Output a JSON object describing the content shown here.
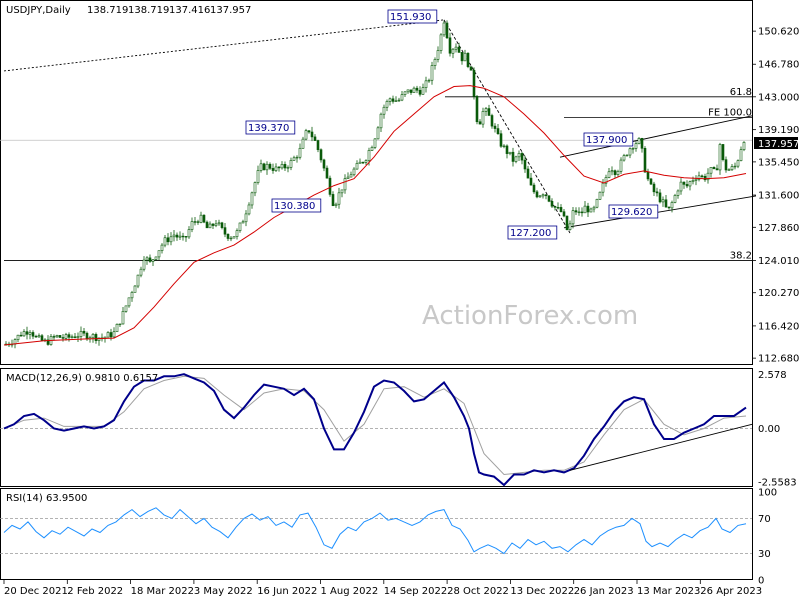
{
  "chart_data": [
    {
      "type": "candlestick",
      "title": "USDJPY,Daily",
      "ohlc_readout": {
        "open": "138.719",
        "high": "138.719",
        "low": "137.416",
        "close": "137.957"
      },
      "current_price": "137.957",
      "watermark": "ActionForex.com",
      "y_ticks": [
        "150.620",
        "146.780",
        "143.000",
        "139.190",
        "135.450",
        "131.600",
        "127.860",
        "124.010",
        "120.270",
        "116.420",
        "112.680"
      ],
      "ylim": [
        112.0,
        154.0
      ],
      "x_ticks": [
        "20 Dec 2021",
        "2 Feb 2022",
        "18 Mar 2022",
        "3 May 2022",
        "16 Jun 2022",
        "1 Aug 2022",
        "14 Sep 2022",
        "28 Oct 2022",
        "13 Dec 2022",
        "26 Jan 2023",
        "13 Mar 2023",
        "26 Apr 2023"
      ],
      "price_path": [
        [
          0,
          114.2
        ],
        [
          10,
          114.8
        ],
        [
          18,
          115.6
        ],
        [
          26,
          116.0
        ],
        [
          32,
          115.0
        ],
        [
          42,
          114.5
        ],
        [
          52,
          115.2
        ],
        [
          62,
          115.0
        ],
        [
          74,
          115.4
        ],
        [
          86,
          115.3
        ],
        [
          98,
          115.0
        ],
        [
          110,
          115.6
        ],
        [
          118,
          117.5
        ],
        [
          126,
          120.0
        ],
        [
          134,
          122.2
        ],
        [
          140,
          124.5
        ],
        [
          146,
          123.7
        ],
        [
          152,
          124.8
        ],
        [
          160,
          126.2
        ],
        [
          170,
          127.0
        ],
        [
          180,
          126.3
        ],
        [
          188,
          128.3
        ],
        [
          196,
          129.0
        ],
        [
          204,
          127.6
        ],
        [
          212,
          128.5
        ],
        [
          220,
          127.2
        ],
        [
          226,
          126.8
        ],
        [
          232,
          127.0
        ],
        [
          240,
          129.0
        ],
        [
          248,
          132.0
        ],
        [
          256,
          134.8
        ],
        [
          264,
          135.0
        ],
        [
          272,
          134.6
        ],
        [
          280,
          134.8
        ],
        [
          288,
          135.5
        ],
        [
          296,
          136.8
        ],
        [
          304,
          139.37
        ],
        [
          312,
          137.6
        ],
        [
          318,
          135.5
        ],
        [
          324,
          133.0
        ],
        [
          330,
          130.38
        ],
        [
          338,
          132.5
        ],
        [
          346,
          134.0
        ],
        [
          354,
          135.0
        ],
        [
          362,
          136.0
        ],
        [
          370,
          138.0
        ],
        [
          378,
          141.5
        ],
        [
          386,
          142.8
        ],
        [
          394,
          142.5
        ],
        [
          402,
          143.5
        ],
        [
          410,
          143.8
        ],
        [
          418,
          143.7
        ],
        [
          424,
          144.8
        ],
        [
          430,
          147.0
        ],
        [
          436,
          149.5
        ],
        [
          440,
          151.93
        ],
        [
          446,
          148.5
        ],
        [
          452,
          149.0
        ],
        [
          458,
          147.5
        ],
        [
          462,
          147.8
        ],
        [
          468,
          145.2
        ],
        [
          474,
          139.5
        ],
        [
          480,
          141.6
        ],
        [
          486,
          140.5
        ],
        [
          492,
          138.8
        ],
        [
          498,
          137.3
        ],
        [
          504,
          136.5
        ],
        [
          510,
          135.5
        ],
        [
          516,
          136.4
        ],
        [
          522,
          134.0
        ],
        [
          528,
          132.2
        ],
        [
          534,
          131.6
        ],
        [
          540,
          132.0
        ],
        [
          546,
          131.0
        ],
        [
          552,
          130.0
        ],
        [
          558,
          129.6
        ],
        [
          564,
          127.2
        ],
        [
          570,
          130.0
        ],
        [
          576,
          129.3
        ],
        [
          582,
          130.3
        ],
        [
          588,
          129.4
        ],
        [
          594,
          131.0
        ],
        [
          600,
          133.0
        ],
        [
          606,
          135.0
        ],
        [
          612,
          134.3
        ],
        [
          618,
          135.5
        ],
        [
          624,
          136.8
        ],
        [
          630,
          137.6
        ],
        [
          636,
          137.9
        ],
        [
          642,
          134.0
        ],
        [
          648,
          132.2
        ],
        [
          654,
          131.5
        ],
        [
          660,
          130.5
        ],
        [
          664,
          129.62
        ],
        [
          670,
          131.2
        ],
        [
          676,
          133.0
        ],
        [
          682,
          132.5
        ],
        [
          688,
          133.4
        ],
        [
          694,
          134.0
        ],
        [
          700,
          133.5
        ],
        [
          706,
          134.5
        ],
        [
          712,
          134.1
        ],
        [
          716,
          137.5
        ],
        [
          720,
          134.8
        ],
        [
          726,
          134.5
        ],
        [
          732,
          135.0
        ],
        [
          738,
          137.5
        ],
        [
          742,
          138.8
        ]
      ],
      "sma_path": [
        [
          0,
          114.2
        ],
        [
          40,
          114.7
        ],
        [
          80,
          114.9
        ],
        [
          110,
          115.0
        ],
        [
          130,
          116.2
        ],
        [
          150,
          118.6
        ],
        [
          170,
          121.3
        ],
        [
          190,
          123.8
        ],
        [
          210,
          124.9
        ],
        [
          230,
          125.8
        ],
        [
          250,
          127.3
        ],
        [
          270,
          129.0
        ],
        [
          290,
          130.3
        ],
        [
          310,
          131.6
        ],
        [
          330,
          132.7
        ],
        [
          350,
          133.5
        ],
        [
          370,
          136.0
        ],
        [
          390,
          139.0
        ],
        [
          410,
          141.0
        ],
        [
          430,
          143.0
        ],
        [
          450,
          144.2
        ],
        [
          466,
          144.3
        ],
        [
          480,
          144.0
        ],
        [
          500,
          143.0
        ],
        [
          520,
          141.0
        ],
        [
          540,
          138.8
        ],
        [
          560,
          136.2
        ],
        [
          580,
          133.8
        ],
        [
          600,
          133.0
        ],
        [
          620,
          134.0
        ],
        [
          640,
          134.4
        ],
        [
          660,
          133.9
        ],
        [
          680,
          133.6
        ],
        [
          700,
          133.5
        ],
        [
          720,
          133.6
        ],
        [
          742,
          134.1
        ]
      ],
      "sma_color": "#d40000",
      "candle_color": "#0a5a0a",
      "levels": [
        {
          "label": "61.8",
          "value": 143.0,
          "xStart": 441
        },
        {
          "label": "FE 100.0",
          "value": 140.6,
          "xStart": 560
        },
        {
          "label": "38.2",
          "value": 124.0,
          "xStart": 0
        }
      ],
      "annotations": [
        "151.930",
        "139.370",
        "130.380",
        "127.200",
        "137.900",
        "129.620"
      ]
    },
    {
      "type": "line",
      "title": "MACD(12,26,9) 0.9810 0.6157",
      "y_ticks": [
        "2.578",
        "0.00",
        "-2.5583"
      ],
      "ylim": [
        -2.75,
        2.8
      ],
      "macd_color": "#00008b",
      "signal_color": "#a0a0a0",
      "macd_path": [
        [
          0,
          0.0
        ],
        [
          10,
          0.2
        ],
        [
          20,
          0.6
        ],
        [
          30,
          0.7
        ],
        [
          40,
          0.4
        ],
        [
          50,
          0.0
        ],
        [
          60,
          -0.1
        ],
        [
          70,
          0.0
        ],
        [
          80,
          0.1
        ],
        [
          90,
          0.0
        ],
        [
          100,
          0.1
        ],
        [
          110,
          0.4
        ],
        [
          120,
          1.3
        ],
        [
          130,
          2.0
        ],
        [
          140,
          2.3
        ],
        [
          150,
          2.3
        ],
        [
          160,
          2.5
        ],
        [
          170,
          2.5
        ],
        [
          180,
          2.6
        ],
        [
          190,
          2.4
        ],
        [
          200,
          2.2
        ],
        [
          210,
          1.8
        ],
        [
          220,
          0.9
        ],
        [
          230,
          0.5
        ],
        [
          240,
          1.0
        ],
        [
          250,
          1.6
        ],
        [
          260,
          2.1
        ],
        [
          270,
          2.0
        ],
        [
          280,
          1.9
        ],
        [
          290,
          1.6
        ],
        [
          300,
          1.9
        ],
        [
          310,
          1.4
        ],
        [
          320,
          0.0
        ],
        [
          330,
          -1.0
        ],
        [
          340,
          -1.0
        ],
        [
          350,
          -0.2
        ],
        [
          360,
          0.8
        ],
        [
          370,
          2.0
        ],
        [
          380,
          2.3
        ],
        [
          390,
          2.2
        ],
        [
          400,
          1.8
        ],
        [
          410,
          1.3
        ],
        [
          420,
          1.4
        ],
        [
          430,
          1.8
        ],
        [
          440,
          2.2
        ],
        [
          450,
          1.5
        ],
        [
          460,
          0.6
        ],
        [
          465,
          0.0
        ],
        [
          470,
          -1.2
        ],
        [
          475,
          -2.1
        ],
        [
          480,
          -2.2
        ],
        [
          490,
          -2.3
        ],
        [
          500,
          -2.7
        ],
        [
          510,
          -2.2
        ],
        [
          520,
          -2.2
        ],
        [
          530,
          -2.0
        ],
        [
          540,
          -2.1
        ],
        [
          550,
          -2.0
        ],
        [
          560,
          -2.1
        ],
        [
          570,
          -1.9
        ],
        [
          580,
          -1.3
        ],
        [
          590,
          -0.5
        ],
        [
          600,
          0.1
        ],
        [
          610,
          0.8
        ],
        [
          620,
          1.3
        ],
        [
          630,
          1.5
        ],
        [
          640,
          1.4
        ],
        [
          650,
          0.2
        ],
        [
          660,
          -0.5
        ],
        [
          670,
          -0.5
        ],
        [
          680,
          -0.2
        ],
        [
          690,
          0.0
        ],
        [
          700,
          0.2
        ],
        [
          710,
          0.6
        ],
        [
          720,
          0.6
        ],
        [
          730,
          0.6
        ],
        [
          742,
          1.0
        ]
      ],
      "signal_path": [
        [
          0,
          0.0
        ],
        [
          20,
          0.4
        ],
        [
          40,
          0.5
        ],
        [
          60,
          0.1
        ],
        [
          80,
          0.1
        ],
        [
          100,
          0.1
        ],
        [
          120,
          0.8
        ],
        [
          140,
          1.9
        ],
        [
          160,
          2.3
        ],
        [
          180,
          2.5
        ],
        [
          200,
          2.4
        ],
        [
          220,
          1.6
        ],
        [
          240,
          0.9
        ],
        [
          260,
          1.7
        ],
        [
          280,
          1.9
        ],
        [
          300,
          1.8
        ],
        [
          320,
          0.9
        ],
        [
          340,
          -0.6
        ],
        [
          360,
          0.2
        ],
        [
          380,
          1.9
        ],
        [
          400,
          2.0
        ],
        [
          420,
          1.5
        ],
        [
          440,
          1.9
        ],
        [
          460,
          1.2
        ],
        [
          480,
          -1.2
        ],
        [
          500,
          -2.2
        ],
        [
          520,
          -2.1
        ],
        [
          540,
          -2.0
        ],
        [
          560,
          -2.0
        ],
        [
          580,
          -1.6
        ],
        [
          600,
          -0.3
        ],
        [
          620,
          0.9
        ],
        [
          640,
          1.4
        ],
        [
          660,
          0.2
        ],
        [
          680,
          -0.3
        ],
        [
          700,
          0.0
        ],
        [
          720,
          0.5
        ],
        [
          742,
          0.6
        ]
      ]
    },
    {
      "type": "line",
      "title": "RSI(14) 63.9500",
      "y_ticks": [
        "100",
        "70",
        "30",
        "0"
      ],
      "ylim": [
        0,
        100
      ],
      "rsi_color": "#1e90ff",
      "rsi_path": [
        [
          0,
          54
        ],
        [
          8,
          62
        ],
        [
          16,
          58
        ],
        [
          24,
          66
        ],
        [
          32,
          55
        ],
        [
          40,
          48
        ],
        [
          48,
          56
        ],
        [
          56,
          52
        ],
        [
          64,
          60
        ],
        [
          72,
          55
        ],
        [
          80,
          50
        ],
        [
          88,
          58
        ],
        [
          96,
          54
        ],
        [
          104,
          62
        ],
        [
          112,
          66
        ],
        [
          120,
          74
        ],
        [
          128,
          80
        ],
        [
          136,
          72
        ],
        [
          144,
          78
        ],
        [
          152,
          82
        ],
        [
          160,
          74
        ],
        [
          168,
          70
        ],
        [
          176,
          80
        ],
        [
          184,
          72
        ],
        [
          192,
          64
        ],
        [
          200,
          70
        ],
        [
          208,
          60
        ],
        [
          216,
          55
        ],
        [
          224,
          48
        ],
        [
          232,
          60
        ],
        [
          240,
          70
        ],
        [
          248,
          75
        ],
        [
          256,
          68
        ],
        [
          264,
          72
        ],
        [
          272,
          62
        ],
        [
          280,
          66
        ],
        [
          288,
          60
        ],
        [
          296,
          74
        ],
        [
          304,
          76
        ],
        [
          312,
          60
        ],
        [
          320,
          40
        ],
        [
          328,
          36
        ],
        [
          336,
          52
        ],
        [
          344,
          60
        ],
        [
          352,
          56
        ],
        [
          360,
          66
        ],
        [
          368,
          70
        ],
        [
          376,
          76
        ],
        [
          384,
          68
        ],
        [
          392,
          70
        ],
        [
          400,
          66
        ],
        [
          408,
          62
        ],
        [
          416,
          66
        ],
        [
          424,
          74
        ],
        [
          432,
          78
        ],
        [
          440,
          80
        ],
        [
          448,
          62
        ],
        [
          456,
          58
        ],
        [
          464,
          45
        ],
        [
          470,
          32
        ],
        [
          476,
          36
        ],
        [
          484,
          40
        ],
        [
          492,
          36
        ],
        [
          500,
          30
        ],
        [
          508,
          42
        ],
        [
          516,
          36
        ],
        [
          524,
          46
        ],
        [
          532,
          40
        ],
        [
          540,
          44
        ],
        [
          548,
          36
        ],
        [
          556,
          38
        ],
        [
          564,
          32
        ],
        [
          572,
          40
        ],
        [
          580,
          46
        ],
        [
          588,
          40
        ],
        [
          596,
          50
        ],
        [
          604,
          56
        ],
        [
          612,
          60
        ],
        [
          620,
          62
        ],
        [
          628,
          70
        ],
        [
          636,
          64
        ],
        [
          642,
          44
        ],
        [
          648,
          38
        ],
        [
          656,
          42
        ],
        [
          664,
          38
        ],
        [
          672,
          46
        ],
        [
          680,
          52
        ],
        [
          688,
          48
        ],
        [
          696,
          56
        ],
        [
          704,
          60
        ],
        [
          712,
          70
        ],
        [
          718,
          58
        ],
        [
          726,
          54
        ],
        [
          734,
          62
        ],
        [
          742,
          64
        ]
      ]
    }
  ]
}
